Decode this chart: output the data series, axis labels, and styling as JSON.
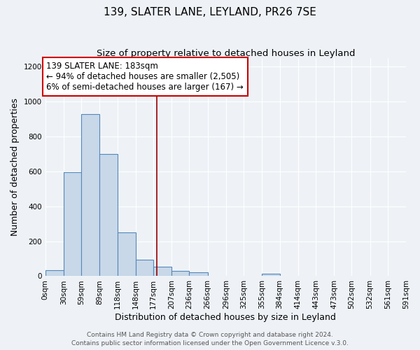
{
  "title": "139, SLATER LANE, LEYLAND, PR26 7SE",
  "subtitle": "Size of property relative to detached houses in Leyland",
  "xlabel": "Distribution of detached houses by size in Leyland",
  "ylabel": "Number of detached properties",
  "bin_edges": [
    0,
    30,
    59,
    89,
    118,
    148,
    177,
    207,
    236,
    266,
    296,
    325,
    355,
    384,
    414,
    443,
    473,
    502,
    532,
    561,
    591
  ],
  "bin_labels": [
    "0sqm",
    "30sqm",
    "59sqm",
    "89sqm",
    "118sqm",
    "148sqm",
    "177sqm",
    "207sqm",
    "236sqm",
    "266sqm",
    "296sqm",
    "325sqm",
    "355sqm",
    "384sqm",
    "414sqm",
    "443sqm",
    "473sqm",
    "502sqm",
    "532sqm",
    "561sqm",
    "591sqm"
  ],
  "bar_heights": [
    35,
    595,
    930,
    700,
    250,
    95,
    55,
    30,
    20,
    0,
    0,
    0,
    15,
    0,
    0,
    0,
    0,
    0,
    0,
    0
  ],
  "bar_color": "#c8d8e8",
  "bar_edge_color": "#5588bb",
  "vline_x": 183,
  "vline_color": "#990000",
  "ylim": [
    0,
    1250
  ],
  "yticks": [
    0,
    200,
    400,
    600,
    800,
    1000,
    1200
  ],
  "background_color": "#eef2f7",
  "grid_color": "#ffffff",
  "annotation_title": "139 SLATER LANE: 183sqm",
  "annotation_line1": "← 94% of detached houses are smaller (2,505)",
  "annotation_line2": "6% of semi-detached houses are larger (167) →",
  "annotation_box_facecolor": "#ffffff",
  "annotation_box_edgecolor": "#cc0000",
  "footer1": "Contains HM Land Registry data © Crown copyright and database right 2024.",
  "footer2": "Contains public sector information licensed under the Open Government Licence v.3.0.",
  "title_fontsize": 11,
  "subtitle_fontsize": 9.5,
  "axis_label_fontsize": 9,
  "tick_fontsize": 7.5,
  "annotation_fontsize": 8.5,
  "footer_fontsize": 6.5
}
